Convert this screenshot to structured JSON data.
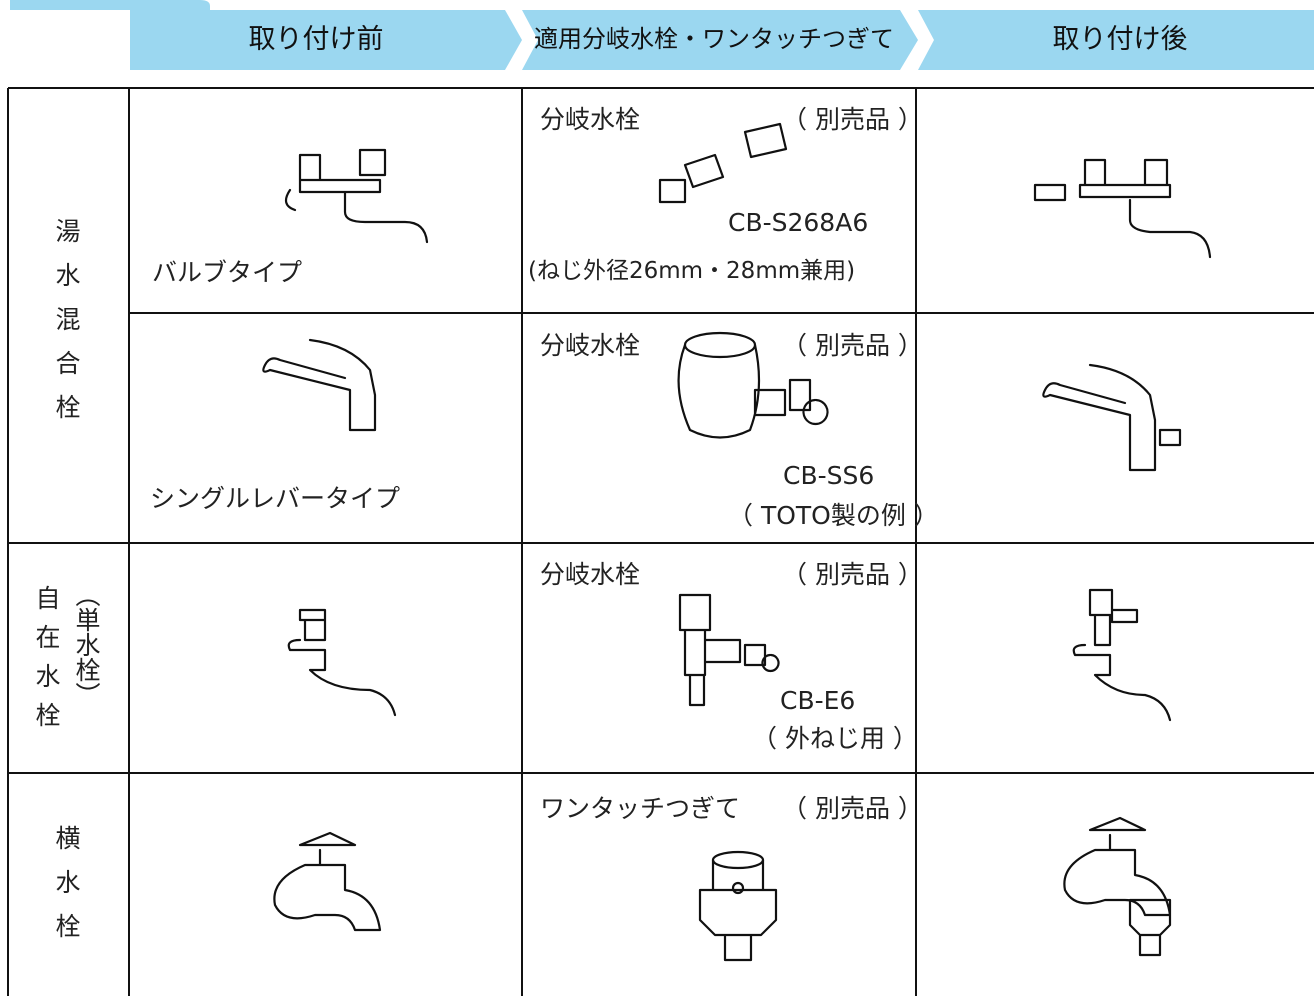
{
  "header": {
    "columns": [
      "取り付け前",
      "適用分岐水栓・ワンタッチつぎて",
      "取り付け後"
    ]
  },
  "groups": [
    {
      "label": "湯水混合栓"
    },
    {
      "label": "自在水栓",
      "sublabel": "（単水栓）"
    },
    {
      "label": "横水栓"
    }
  ],
  "rows": [
    {
      "before": "バルブタイプ",
      "part": "分岐水栓",
      "note": "（ 別売品 ）",
      "model": "CB-S268A6",
      "model_note": "(ねじ外径26mm・28mm兼用)"
    },
    {
      "before": "シングルレバータイプ",
      "part": "分岐水栓",
      "note": "（ 別売品 ）",
      "model": "CB-SS6",
      "model_note": "（ TOTO製の例 ）"
    },
    {
      "part": "分岐水栓",
      "note": "（ 別売品 ）",
      "model": "CB-E6",
      "model_note": "（ 外ねじ用 ）"
    },
    {
      "part": "ワンタッチつぎて",
      "note": "（ 別売品 ）"
    }
  ]
}
